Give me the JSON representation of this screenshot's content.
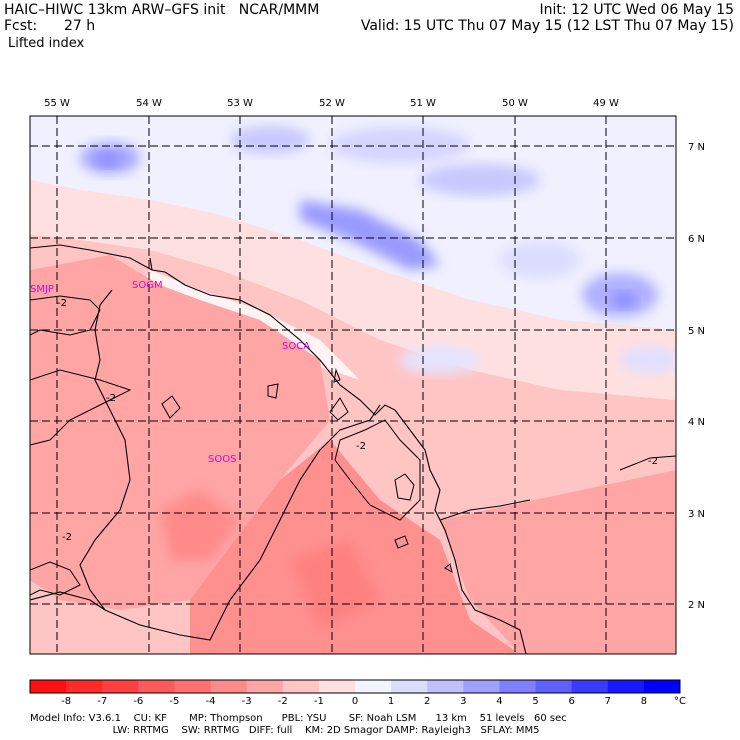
{
  "header": {
    "title_left": "HAIC–HIWC 13km ARW–GFS init   NCAR/MMM",
    "fcst_label": "Fcst:",
    "fcst_value": "27 h",
    "field": "Lifted index",
    "init": "Init: 12 UTC Wed 06 May 15",
    "valid": "Valid: 15 UTC Thu 07 May 15 (12 LST Thu 07 May 15)"
  },
  "axes": {
    "lon_labels": [
      "55 W",
      "54 W",
      "53 W",
      "52 W",
      "51 W",
      "50 W",
      "49 W"
    ],
    "lat_labels": [
      "7 N",
      "6 N",
      "5 N",
      "4 N",
      "3 N",
      "2 N"
    ]
  },
  "stations": [
    "SMJP",
    "SOGM",
    "SOCA",
    "SOOS"
  ],
  "contour_labels": [
    "-2",
    "-2",
    "-2",
    "-2",
    "-2"
  ],
  "colorbar": {
    "ticks": [
      "-8",
      "-7",
      "-6",
      "-5",
      "-4",
      "-3",
      "-2",
      "-1",
      "0",
      "1",
      "2",
      "3",
      "4",
      "5",
      "6",
      "7",
      "8"
    ],
    "unit": "°C",
    "colors": [
      "#ff1010",
      "#ff2a2a",
      "#ff4040",
      "#ff5a5a",
      "#ff7070",
      "#ff8a8a",
      "#ffa5a5",
      "#ffc5c5",
      "#ffe0e0",
      "#f4f4ff",
      "#dcdcff",
      "#c0c0ff",
      "#a0a0ff",
      "#8080ff",
      "#6060ff",
      "#3a3aff",
      "#1818ff",
      "#0000ff"
    ]
  },
  "footer": {
    "line1": "Model Info: V3.6.1    CU: KF       MP: Thompson      PBL: YSU       SF: Noah LSM      13 km    51 levels   60 sec",
    "line2": "                          LW: RRTMG    SW: RRTMG   DIFF: full    KM: 2D Smagor DAMP: Rayleigh3   SFLAY: MM5"
  }
}
